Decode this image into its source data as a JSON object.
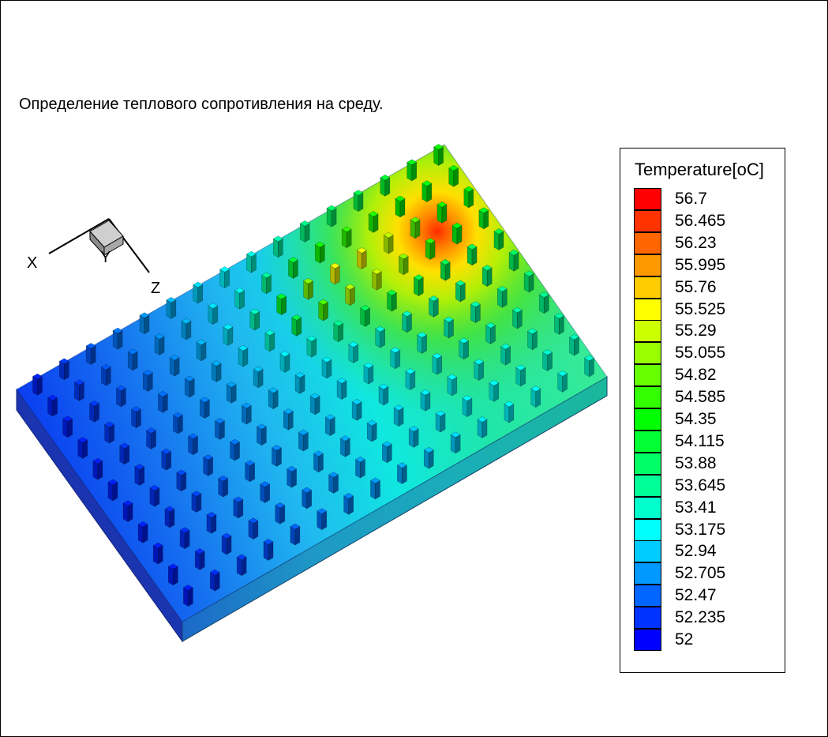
{
  "title": "Определение теплового сопротивления на среду.",
  "axes": {
    "x": "X",
    "y": "Y",
    "z": "Z"
  },
  "legend": {
    "title": "Temperature[oC]",
    "entries": [
      {
        "label": "56.7",
        "color": "#ff0000"
      },
      {
        "label": "56.465",
        "color": "#ff3300"
      },
      {
        "label": "56.23",
        "color": "#ff6600"
      },
      {
        "label": "55.995",
        "color": "#ff9900"
      },
      {
        "label": "55.76",
        "color": "#ffcc00"
      },
      {
        "label": "55.525",
        "color": "#ffff00"
      },
      {
        "label": "55.29",
        "color": "#ccff00"
      },
      {
        "label": "55.055",
        "color": "#99ff00"
      },
      {
        "label": "54.82",
        "color": "#66ff00"
      },
      {
        "label": "54.585",
        "color": "#33ff00"
      },
      {
        "label": "54.35",
        "color": "#00ff00"
      },
      {
        "label": "54.115",
        "color": "#00ff33"
      },
      {
        "label": "53.88",
        "color": "#00ff66"
      },
      {
        "label": "53.645",
        "color": "#00ff99"
      },
      {
        "label": "53.41",
        "color": "#00ffcc"
      },
      {
        "label": "53.175",
        "color": "#00ffff"
      },
      {
        "label": "52.94",
        "color": "#00ccff"
      },
      {
        "label": "52.705",
        "color": "#0099ff"
      },
      {
        "label": "52.47",
        "color": "#0066ff"
      },
      {
        "label": "52.235",
        "color": "#0033ff"
      },
      {
        "label": "52",
        "color": "#0000ff"
      }
    ]
  },
  "field": {
    "min": 52,
    "max": 56.7,
    "hotspot_max": 56.7
  }
}
